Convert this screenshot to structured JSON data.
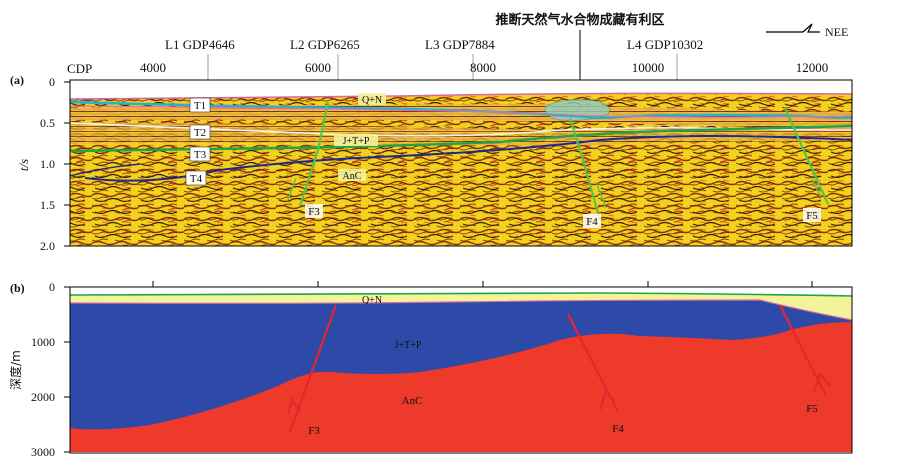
{
  "header": {
    "title_cn": "推断天然气水合物成藏有利区",
    "legend_label": "NEE",
    "cdp_label": "CDP",
    "wells": [
      "L1 GDP4646",
      "L2 GDP6265",
      "L3 GDP7884",
      "L4 GDP10302"
    ],
    "cdp_ticks": [
      "4000",
      "6000",
      "8000",
      "10000",
      "12000"
    ]
  },
  "panel_a": {
    "tag": "(a)",
    "y_label": "t/s",
    "y_ticks": [
      "0",
      "0.5",
      "1.0",
      "1.5",
      "2.0"
    ],
    "horizons": [
      "T1",
      "T2",
      "T3",
      "T4"
    ],
    "units": [
      "Q+N",
      "J+T+P",
      "AnC"
    ],
    "faults": [
      "F3",
      "F4",
      "F5"
    ]
  },
  "panel_b": {
    "tag": "(b)",
    "y_label": "深度/m",
    "y_ticks": [
      "0",
      "1000",
      "2000",
      "3000"
    ],
    "units": [
      "Q+N",
      "J+T+P",
      "AnC"
    ],
    "faults": [
      "F3",
      "F4",
      "F5"
    ]
  },
  "colors": {
    "qn_layer": "#f3f39a",
    "jtp_layer": "#2d4aa8",
    "anc_layer": "#ee3a2a",
    "fault_red": "#e8252a",
    "fault_green": "#58c24f",
    "horizon_green": "#21a34a",
    "horizon_cyan": "#1fb3d6",
    "horizon_navy": "#1c2a8c",
    "seismic_base": "#f2d21c"
  }
}
